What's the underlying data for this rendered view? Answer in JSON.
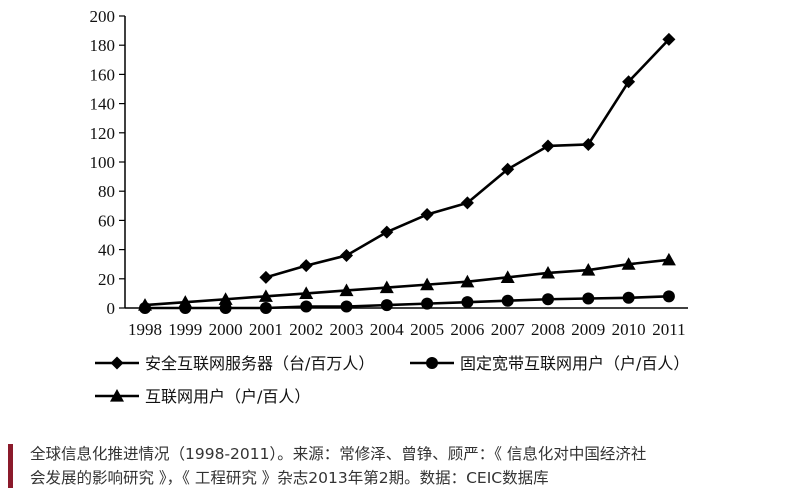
{
  "chart_data": {
    "type": "line",
    "categories": [
      "1998",
      "1999",
      "2000",
      "2001",
      "2002",
      "2003",
      "2004",
      "2005",
      "2006",
      "2007",
      "2008",
      "2009",
      "2010",
      "2011"
    ],
    "ylim": [
      0,
      200
    ],
    "yticks": [
      "0",
      "20",
      "40",
      "60",
      "80",
      "100",
      "120",
      "140",
      "160",
      "180",
      "200"
    ],
    "series": [
      {
        "name": "安全互联网服务器（台/百万人）",
        "marker": "diamond",
        "values": [
          null,
          null,
          null,
          21,
          29,
          36,
          52,
          64,
          72,
          95,
          111,
          112,
          155,
          184
        ]
      },
      {
        "name": "固定宽带互联网用户（户/百人）",
        "marker": "circle",
        "values": [
          0,
          0,
          0,
          0,
          1,
          1,
          2,
          3,
          4,
          5,
          6,
          6.5,
          7,
          8
        ]
      },
      {
        "name": "互联网用户（户/百人）",
        "marker": "triangle",
        "values": [
          2,
          4,
          6,
          8,
          10,
          12,
          14,
          16,
          18,
          21,
          24,
          26,
          30,
          33
        ]
      }
    ],
    "legend_position": "bottom",
    "grid": false
  },
  "caption": {
    "line1": "全球信息化推进情况（1998-2011）。来源：常修泽、曾铮、顾严：《 信息化对中国经济社",
    "line2": "会发展的影响研究 》，《 工程研究 》杂志2013年第2期。数据：CEIC数据库"
  },
  "colors": {
    "series": "#000000",
    "caption_bar": "#8b1a2b"
  }
}
